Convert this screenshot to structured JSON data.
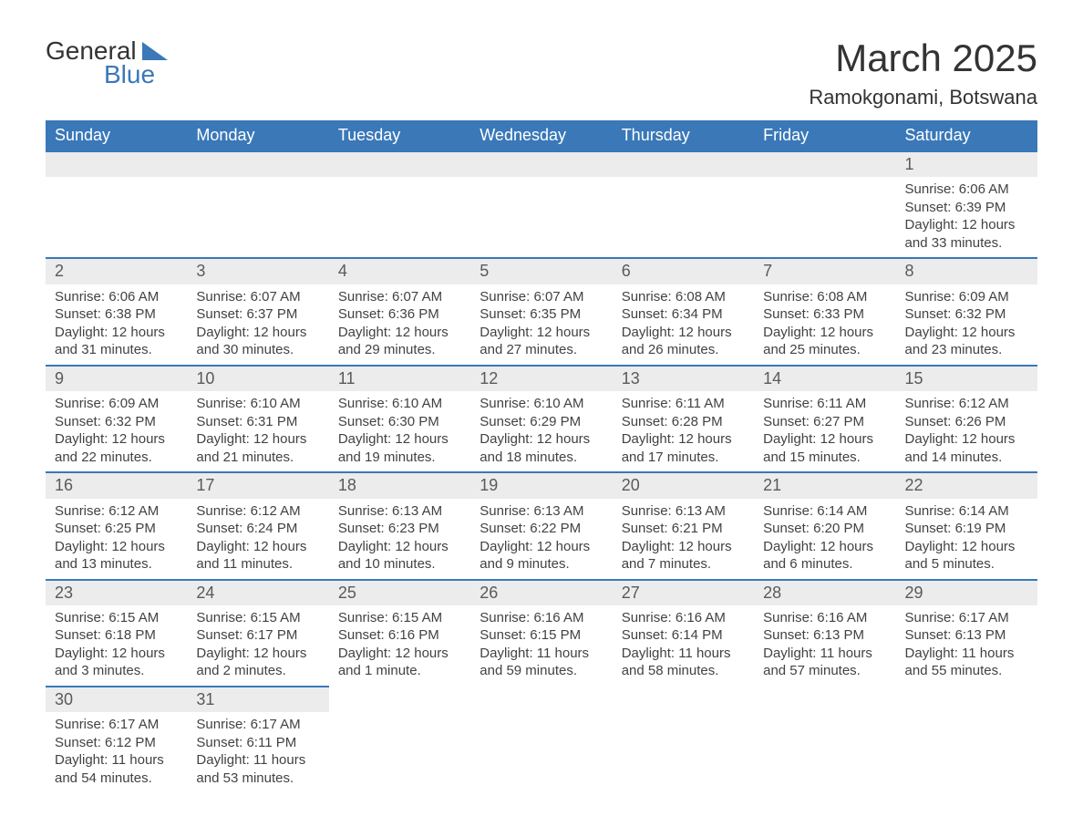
{
  "logo": {
    "text1": "General",
    "text2": "Blue"
  },
  "title": "March 2025",
  "location": "Ramokgonami, Botswana",
  "colors": {
    "header_bg": "#3a78b8",
    "header_fg": "#ffffff",
    "daynum_bg": "#ececec",
    "border": "#3a78b8",
    "text": "#424242",
    "page_bg": "#ffffff"
  },
  "type": "table",
  "weekday_headers": [
    "Sunday",
    "Monday",
    "Tuesday",
    "Wednesday",
    "Thursday",
    "Friday",
    "Saturday"
  ],
  "weeks": [
    {
      "days": [
        null,
        null,
        null,
        null,
        null,
        null,
        {
          "n": "1",
          "sunrise": "Sunrise: 6:06 AM",
          "sunset": "Sunset: 6:39 PM",
          "day1": "Daylight: 12 hours",
          "day2": "and 33 minutes."
        }
      ]
    },
    {
      "days": [
        {
          "n": "2",
          "sunrise": "Sunrise: 6:06 AM",
          "sunset": "Sunset: 6:38 PM",
          "day1": "Daylight: 12 hours",
          "day2": "and 31 minutes."
        },
        {
          "n": "3",
          "sunrise": "Sunrise: 6:07 AM",
          "sunset": "Sunset: 6:37 PM",
          "day1": "Daylight: 12 hours",
          "day2": "and 30 minutes."
        },
        {
          "n": "4",
          "sunrise": "Sunrise: 6:07 AM",
          "sunset": "Sunset: 6:36 PM",
          "day1": "Daylight: 12 hours",
          "day2": "and 29 minutes."
        },
        {
          "n": "5",
          "sunrise": "Sunrise: 6:07 AM",
          "sunset": "Sunset: 6:35 PM",
          "day1": "Daylight: 12 hours",
          "day2": "and 27 minutes."
        },
        {
          "n": "6",
          "sunrise": "Sunrise: 6:08 AM",
          "sunset": "Sunset: 6:34 PM",
          "day1": "Daylight: 12 hours",
          "day2": "and 26 minutes."
        },
        {
          "n": "7",
          "sunrise": "Sunrise: 6:08 AM",
          "sunset": "Sunset: 6:33 PM",
          "day1": "Daylight: 12 hours",
          "day2": "and 25 minutes."
        },
        {
          "n": "8",
          "sunrise": "Sunrise: 6:09 AM",
          "sunset": "Sunset: 6:32 PM",
          "day1": "Daylight: 12 hours",
          "day2": "and 23 minutes."
        }
      ]
    },
    {
      "days": [
        {
          "n": "9",
          "sunrise": "Sunrise: 6:09 AM",
          "sunset": "Sunset: 6:32 PM",
          "day1": "Daylight: 12 hours",
          "day2": "and 22 minutes."
        },
        {
          "n": "10",
          "sunrise": "Sunrise: 6:10 AM",
          "sunset": "Sunset: 6:31 PM",
          "day1": "Daylight: 12 hours",
          "day2": "and 21 minutes."
        },
        {
          "n": "11",
          "sunrise": "Sunrise: 6:10 AM",
          "sunset": "Sunset: 6:30 PM",
          "day1": "Daylight: 12 hours",
          "day2": "and 19 minutes."
        },
        {
          "n": "12",
          "sunrise": "Sunrise: 6:10 AM",
          "sunset": "Sunset: 6:29 PM",
          "day1": "Daylight: 12 hours",
          "day2": "and 18 minutes."
        },
        {
          "n": "13",
          "sunrise": "Sunrise: 6:11 AM",
          "sunset": "Sunset: 6:28 PM",
          "day1": "Daylight: 12 hours",
          "day2": "and 17 minutes."
        },
        {
          "n": "14",
          "sunrise": "Sunrise: 6:11 AM",
          "sunset": "Sunset: 6:27 PM",
          "day1": "Daylight: 12 hours",
          "day2": "and 15 minutes."
        },
        {
          "n": "15",
          "sunrise": "Sunrise: 6:12 AM",
          "sunset": "Sunset: 6:26 PM",
          "day1": "Daylight: 12 hours",
          "day2": "and 14 minutes."
        }
      ]
    },
    {
      "days": [
        {
          "n": "16",
          "sunrise": "Sunrise: 6:12 AM",
          "sunset": "Sunset: 6:25 PM",
          "day1": "Daylight: 12 hours",
          "day2": "and 13 minutes."
        },
        {
          "n": "17",
          "sunrise": "Sunrise: 6:12 AM",
          "sunset": "Sunset: 6:24 PM",
          "day1": "Daylight: 12 hours",
          "day2": "and 11 minutes."
        },
        {
          "n": "18",
          "sunrise": "Sunrise: 6:13 AM",
          "sunset": "Sunset: 6:23 PM",
          "day1": "Daylight: 12 hours",
          "day2": "and 10 minutes."
        },
        {
          "n": "19",
          "sunrise": "Sunrise: 6:13 AM",
          "sunset": "Sunset: 6:22 PM",
          "day1": "Daylight: 12 hours",
          "day2": "and 9 minutes."
        },
        {
          "n": "20",
          "sunrise": "Sunrise: 6:13 AM",
          "sunset": "Sunset: 6:21 PM",
          "day1": "Daylight: 12 hours",
          "day2": "and 7 minutes."
        },
        {
          "n": "21",
          "sunrise": "Sunrise: 6:14 AM",
          "sunset": "Sunset: 6:20 PM",
          "day1": "Daylight: 12 hours",
          "day2": "and 6 minutes."
        },
        {
          "n": "22",
          "sunrise": "Sunrise: 6:14 AM",
          "sunset": "Sunset: 6:19 PM",
          "day1": "Daylight: 12 hours",
          "day2": "and 5 minutes."
        }
      ]
    },
    {
      "days": [
        {
          "n": "23",
          "sunrise": "Sunrise: 6:15 AM",
          "sunset": "Sunset: 6:18 PM",
          "day1": "Daylight: 12 hours",
          "day2": "and 3 minutes."
        },
        {
          "n": "24",
          "sunrise": "Sunrise: 6:15 AM",
          "sunset": "Sunset: 6:17 PM",
          "day1": "Daylight: 12 hours",
          "day2": "and 2 minutes."
        },
        {
          "n": "25",
          "sunrise": "Sunrise: 6:15 AM",
          "sunset": "Sunset: 6:16 PM",
          "day1": "Daylight: 12 hours",
          "day2": "and 1 minute."
        },
        {
          "n": "26",
          "sunrise": "Sunrise: 6:16 AM",
          "sunset": "Sunset: 6:15 PM",
          "day1": "Daylight: 11 hours",
          "day2": "and 59 minutes."
        },
        {
          "n": "27",
          "sunrise": "Sunrise: 6:16 AM",
          "sunset": "Sunset: 6:14 PM",
          "day1": "Daylight: 11 hours",
          "day2": "and 58 minutes."
        },
        {
          "n": "28",
          "sunrise": "Sunrise: 6:16 AM",
          "sunset": "Sunset: 6:13 PM",
          "day1": "Daylight: 11 hours",
          "day2": "and 57 minutes."
        },
        {
          "n": "29",
          "sunrise": "Sunrise: 6:17 AM",
          "sunset": "Sunset: 6:13 PM",
          "day1": "Daylight: 11 hours",
          "day2": "and 55 minutes."
        }
      ]
    },
    {
      "days": [
        {
          "n": "30",
          "sunrise": "Sunrise: 6:17 AM",
          "sunset": "Sunset: 6:12 PM",
          "day1": "Daylight: 11 hours",
          "day2": "and 54 minutes."
        },
        {
          "n": "31",
          "sunrise": "Sunrise: 6:17 AM",
          "sunset": "Sunset: 6:11 PM",
          "day1": "Daylight: 11 hours",
          "day2": "and 53 minutes."
        },
        null,
        null,
        null,
        null,
        null
      ]
    }
  ]
}
